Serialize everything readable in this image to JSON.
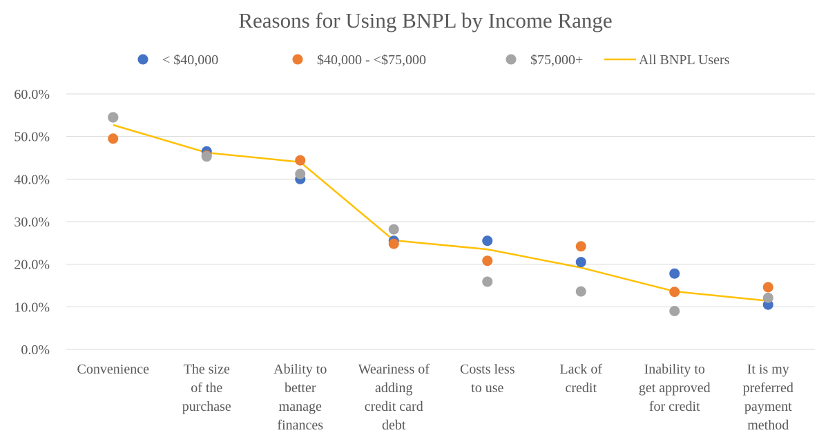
{
  "chart_data": {
    "type": "scatter",
    "title": "Reasons for Using BNPL by Income Range",
    "xlabel": "",
    "ylabel": "",
    "ylim": [
      0,
      0.6
    ],
    "y_ticks": [
      "0.0%",
      "10.0%",
      "20.0%",
      "30.0%",
      "40.0%",
      "50.0%",
      "60.0%"
    ],
    "grid": true,
    "legend_position": "top",
    "categories": [
      [
        "Convenience"
      ],
      [
        "The size",
        "of the",
        "purchase"
      ],
      [
        "Ability to",
        "better",
        "manage",
        "finances"
      ],
      [
        "Weariness of",
        "adding",
        "credit card",
        "debt"
      ],
      [
        "Costs less",
        "to use"
      ],
      [
        "Lack of",
        "credit"
      ],
      [
        "Inability to",
        "get approved",
        "for credit"
      ],
      [
        "It is my",
        "preferred",
        "payment",
        "method"
      ]
    ],
    "series": [
      {
        "name": "< $40,000",
        "type": "scatter",
        "color": "#4472C4",
        "values": [
          0.545,
          0.465,
          0.4,
          0.255,
          0.255,
          0.205,
          0.178,
          0.105
        ]
      },
      {
        "name": "$40,000 - <$75,000",
        "type": "scatter",
        "color": "#ED7D31",
        "values": [
          0.495,
          0.455,
          0.444,
          0.248,
          0.208,
          0.242,
          0.135,
          0.146
        ]
      },
      {
        "name": "$75,000+",
        "type": "scatter",
        "color": "#A5A5A5",
        "values": [
          0.545,
          0.453,
          0.412,
          0.282,
          0.159,
          0.136,
          0.09,
          0.121
        ]
      },
      {
        "name": "All BNPL Users",
        "type": "line",
        "color": "#FFC000",
        "values": [
          0.527,
          0.462,
          0.44,
          0.256,
          0.235,
          0.192,
          0.136,
          0.114
        ]
      }
    ]
  }
}
